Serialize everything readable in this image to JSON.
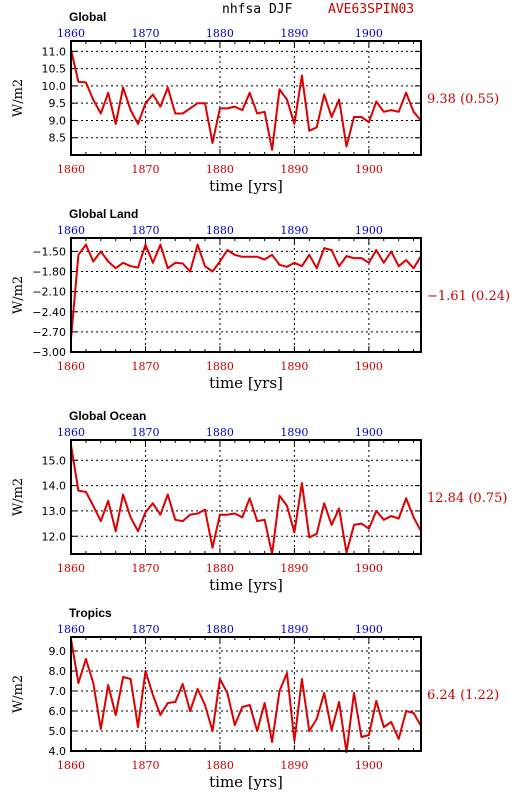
{
  "header": {
    "variable": "nhfsa DJF",
    "case": "AVE63SPIN03",
    "variable_color": "#000000",
    "case_color": "#cc0000"
  },
  "colors": {
    "series": "#dd0000",
    "bottom_ticks": "#cc0000",
    "top_ticks": "#0000cc"
  },
  "chart_data": [
    {
      "type": "line",
      "title": "Global",
      "xlabel": "time [yrs]",
      "ylabel": "W/m2",
      "xlim": [
        1860,
        1907
      ],
      "ylim": [
        8.0,
        11.3
      ],
      "xticks": [
        1860,
        1870,
        1880,
        1890,
        1900
      ],
      "xtick_labels": [
        "1860",
        "1870",
        "1880",
        "1890",
        "1900"
      ],
      "yticks": [
        8.5,
        9.0,
        9.5,
        10.0,
        10.5,
        11.0
      ],
      "ytick_labels": [
        "8.5",
        "9.0",
        "9.5",
        "10.0",
        "10.5",
        "11.0"
      ],
      "grid": true,
      "stat_label": "9.38 (0.55)",
      "x": [
        1860,
        1861,
        1862,
        1863,
        1864,
        1865,
        1866,
        1867,
        1868,
        1869,
        1870,
        1871,
        1872,
        1873,
        1874,
        1875,
        1876,
        1877,
        1878,
        1879,
        1880,
        1881,
        1882,
        1883,
        1884,
        1885,
        1886,
        1887,
        1888,
        1889,
        1890,
        1891,
        1892,
        1893,
        1894,
        1895,
        1896,
        1897,
        1898,
        1899,
        1900,
        1901,
        1902,
        1903,
        1904,
        1905,
        1906,
        1907
      ],
      "values": [
        11.05,
        10.12,
        10.1,
        9.6,
        9.2,
        9.8,
        8.9,
        9.95,
        9.3,
        8.9,
        9.5,
        9.75,
        9.4,
        9.95,
        9.2,
        9.2,
        9.35,
        9.5,
        9.5,
        8.35,
        9.35,
        9.35,
        9.4,
        9.3,
        9.8,
        9.2,
        9.25,
        8.15,
        9.9,
        9.6,
        8.9,
        10.3,
        8.7,
        8.8,
        9.75,
        9.1,
        9.6,
        8.25,
        9.1,
        9.1,
        8.95,
        9.55,
        9.25,
        9.3,
        9.25,
        9.8,
        9.25,
        9.0
      ]
    },
    {
      "type": "line",
      "title": "Global Land",
      "xlabel": "time [yrs]",
      "ylabel": "W/m2",
      "xlim": [
        1860,
        1907
      ],
      "ylim": [
        -3.0,
        -1.3
      ],
      "xticks": [
        1860,
        1870,
        1880,
        1890,
        1900
      ],
      "xtick_labels": [
        "1860",
        "1870",
        "1880",
        "1890",
        "1900"
      ],
      "yticks": [
        -3.0,
        -2.7,
        -2.4,
        -2.1,
        -1.8,
        -1.5
      ],
      "ytick_labels": [
        "−3.00",
        "−2.70",
        "−2.40",
        "−2.10",
        "−1.80",
        "−1.50"
      ],
      "grid": true,
      "stat_label": "−1.61 (0.24)",
      "x": [
        1860,
        1861,
        1862,
        1863,
        1864,
        1865,
        1866,
        1867,
        1868,
        1869,
        1870,
        1871,
        1872,
        1873,
        1874,
        1875,
        1876,
        1877,
        1878,
        1879,
        1880,
        1881,
        1882,
        1883,
        1884,
        1885,
        1886,
        1887,
        1888,
        1889,
        1890,
        1891,
        1892,
        1893,
        1894,
        1895,
        1896,
        1897,
        1898,
        1899,
        1900,
        1901,
        1902,
        1903,
        1904,
        1905,
        1906,
        1907
      ],
      "values": [
        -2.8,
        -1.55,
        -1.4,
        -1.65,
        -1.5,
        -1.65,
        -1.75,
        -1.67,
        -1.72,
        -1.74,
        -1.4,
        -1.67,
        -1.4,
        -1.75,
        -1.67,
        -1.68,
        -1.8,
        -1.4,
        -1.72,
        -1.8,
        -1.65,
        -1.48,
        -1.55,
        -1.58,
        -1.58,
        -1.58,
        -1.62,
        -1.55,
        -1.7,
        -1.73,
        -1.67,
        -1.72,
        -1.55,
        -1.75,
        -1.45,
        -1.48,
        -1.72,
        -1.57,
        -1.6,
        -1.6,
        -1.67,
        -1.48,
        -1.67,
        -1.5,
        -1.72,
        -1.63,
        -1.75,
        -1.57
      ]
    },
    {
      "type": "line",
      "title": "Global Ocean",
      "xlabel": "time [yrs]",
      "ylabel": "W/m2",
      "xlim": [
        1860,
        1907
      ],
      "ylim": [
        11.3,
        15.8
      ],
      "xticks": [
        1860,
        1870,
        1880,
        1890,
        1900
      ],
      "xtick_labels": [
        "1860",
        "1870",
        "1880",
        "1890",
        "1900"
      ],
      "yticks": [
        12.0,
        13.0,
        14.0,
        15.0
      ],
      "ytick_labels": [
        "12.0",
        "13.0",
        "14.0",
        "15.0"
      ],
      "grid": true,
      "stat_label": "12.84 (0.75)",
      "x": [
        1860,
        1861,
        1862,
        1863,
        1864,
        1865,
        1866,
        1867,
        1868,
        1869,
        1870,
        1871,
        1872,
        1873,
        1874,
        1875,
        1876,
        1877,
        1878,
        1879,
        1880,
        1881,
        1882,
        1883,
        1884,
        1885,
        1886,
        1887,
        1888,
        1889,
        1890,
        1891,
        1892,
        1893,
        1894,
        1895,
        1896,
        1897,
        1898,
        1899,
        1900,
        1901,
        1902,
        1903,
        1904,
        1905,
        1906,
        1907
      ],
      "values": [
        15.6,
        13.8,
        13.75,
        13.2,
        12.6,
        13.4,
        12.2,
        13.65,
        12.75,
        12.2,
        12.95,
        13.3,
        12.85,
        13.65,
        12.65,
        12.6,
        12.85,
        12.9,
        13.05,
        11.55,
        12.85,
        12.85,
        12.9,
        12.75,
        13.5,
        12.6,
        12.65,
        11.3,
        13.6,
        13.2,
        12.15,
        14.1,
        11.95,
        12.1,
        13.3,
        12.45,
        13.1,
        11.35,
        12.45,
        12.5,
        12.3,
        13.0,
        12.65,
        12.8,
        12.7,
        13.5,
        12.75,
        12.2
      ]
    },
    {
      "type": "line",
      "title": "Tropics",
      "xlabel": "time [yrs]",
      "ylabel": "W/m2",
      "xlim": [
        1860,
        1907
      ],
      "ylim": [
        4.0,
        9.7
      ],
      "xticks": [
        1860,
        1870,
        1880,
        1890,
        1900
      ],
      "xtick_labels": [
        "1860",
        "1870",
        "1880",
        "1890",
        "1900"
      ],
      "yticks": [
        4.0,
        5.0,
        6.0,
        7.0,
        8.0,
        9.0
      ],
      "ytick_labels": [
        "4.0",
        "5.0",
        "6.0",
        "7.0",
        "8.0",
        "9.0"
      ],
      "grid": true,
      "stat_label": "6.24 (1.22)",
      "x": [
        1860,
        1861,
        1862,
        1863,
        1864,
        1865,
        1866,
        1867,
        1868,
        1869,
        1870,
        1871,
        1872,
        1873,
        1874,
        1875,
        1876,
        1877,
        1878,
        1879,
        1880,
        1881,
        1882,
        1883,
        1884,
        1885,
        1886,
        1887,
        1888,
        1889,
        1890,
        1891,
        1892,
        1893,
        1894,
        1895,
        1896,
        1897,
        1898,
        1899,
        1900,
        1901,
        1902,
        1903,
        1904,
        1905,
        1906,
        1907
      ],
      "values": [
        9.6,
        7.4,
        8.6,
        7.4,
        5.1,
        7.3,
        5.8,
        7.7,
        7.6,
        5.2,
        8.0,
        6.8,
        5.8,
        6.4,
        6.45,
        7.35,
        6.0,
        7.1,
        6.3,
        5.0,
        7.6,
        6.9,
        5.3,
        6.2,
        6.3,
        5.0,
        6.4,
        4.45,
        7.0,
        7.9,
        4.5,
        7.6,
        5.0,
        5.6,
        6.9,
        5.05,
        6.45,
        3.95,
        6.9,
        4.7,
        4.8,
        6.5,
        5.2,
        5.45,
        4.6,
        6.0,
        5.9,
        5.25
      ]
    }
  ]
}
